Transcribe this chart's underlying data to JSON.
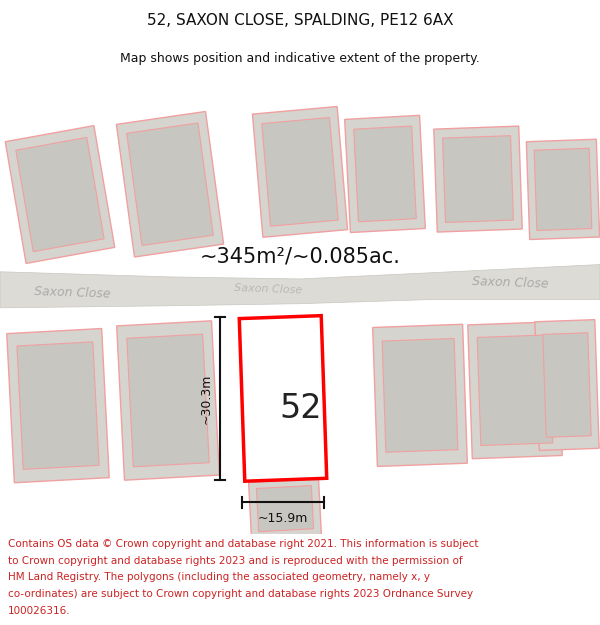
{
  "title": "52, SAXON CLOSE, SPALDING, PE12 6AX",
  "subtitle": "Map shows position and indicative extent of the property.",
  "footer_lines": [
    "Contains OS data © Crown copyright and database right 2021. This information is subject to Crown copyright and database rights 2023 and is reproduced with the permission of",
    "HM Land Registry. The polygons (including the associated geometry, namely x, y co-ordinates) are subject to Crown copyright and database rights 2023 Ordnance Survey",
    "100026316."
  ],
  "area_label": "~345m²/~0.085ac.",
  "width_label": "~15.9m",
  "height_label": "~30.3m",
  "number_label": "52",
  "map_bg": "#eeece8",
  "road_fill": "#dddbd6",
  "road_edge": "#c8c6c0",
  "building_outer_fill": "#d6d4cf",
  "building_outer_edge": "#f0a0a0",
  "building_inner_fill": "#c8c6c0",
  "building_inner_edge": "#f0a0a0",
  "highlight_fill": "#ffffff",
  "highlight_edge": "#ff0000",
  "road_label_color": "#aaaaaa",
  "area_label_color": "#111111",
  "dim_color": "#111111",
  "footer_color": "#cc2222",
  "title_fontsize": 11,
  "subtitle_fontsize": 9,
  "footer_fontsize": 7.5,
  "area_fontsize": 15,
  "number_fontsize": 24,
  "dim_fontsize": 9,
  "road_fontsize": 9
}
